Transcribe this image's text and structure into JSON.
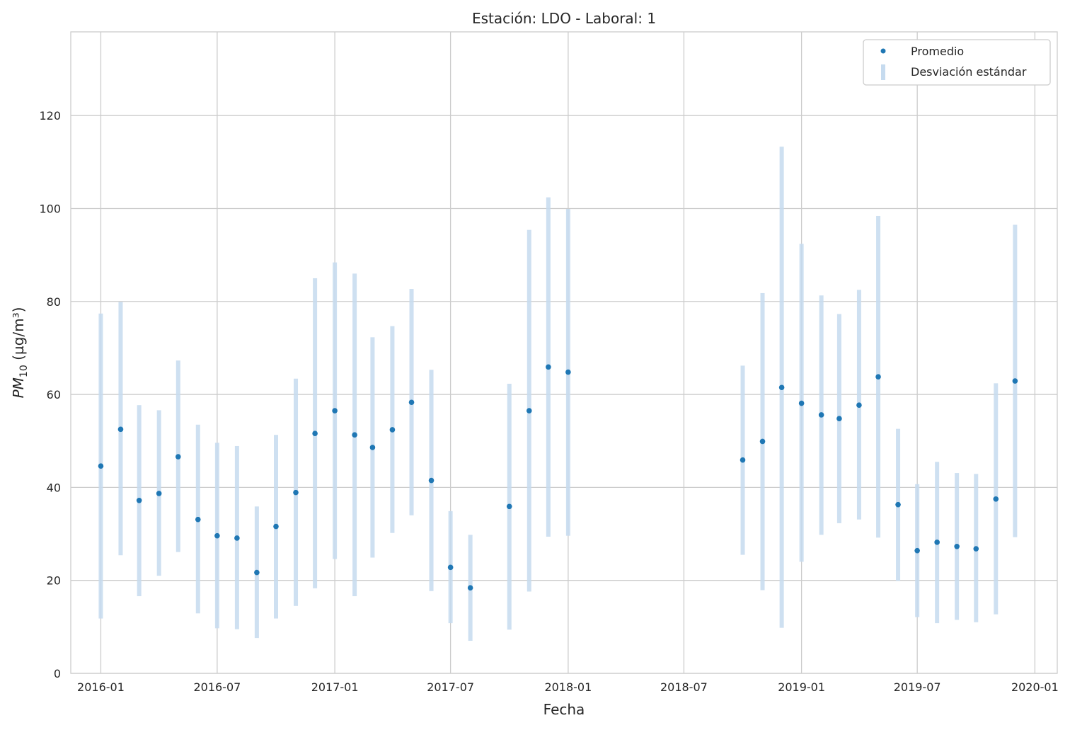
{
  "chart_data": {
    "type": "scatter",
    "title": "Estación: LDO - Laboral: 1",
    "xlabel": "Fecha",
    "ylabel": {
      "base": "PM",
      "sub": "10",
      "unit": " (µg/m³)"
    },
    "xlim": [
      "2015-11-15",
      "2020-02-05"
    ],
    "ylim": [
      0,
      138
    ],
    "yticks": [
      0,
      20,
      40,
      60,
      80,
      100,
      120
    ],
    "xticks": [
      "2016-01",
      "2016-07",
      "2017-01",
      "2017-07",
      "2018-01",
      "2018-07",
      "2019-01",
      "2019-07",
      "2020-01"
    ],
    "grid": true,
    "legend": {
      "position": "top-right",
      "entries": [
        "Promedio",
        "Desviación estándar"
      ]
    },
    "colors": {
      "mean": "#1f77b4",
      "std": "#c6dbef"
    },
    "series": [
      {
        "name": "Promedio",
        "kind": "points",
        "values": [
          {
            "x": "2016-01-01",
            "y": 44.6
          },
          {
            "x": "2016-02-01",
            "y": 52.5
          },
          {
            "x": "2016-03-01",
            "y": 37.2
          },
          {
            "x": "2016-04-01",
            "y": 38.7
          },
          {
            "x": "2016-05-01",
            "y": 46.6
          },
          {
            "x": "2016-06-01",
            "y": 33.1
          },
          {
            "x": "2016-07-01",
            "y": 29.6
          },
          {
            "x": "2016-08-01",
            "y": 29.1
          },
          {
            "x": "2016-09-01",
            "y": 21.7
          },
          {
            "x": "2016-10-01",
            "y": 31.6
          },
          {
            "x": "2016-11-01",
            "y": 38.9
          },
          {
            "x": "2016-12-01",
            "y": 51.6
          },
          {
            "x": "2017-01-01",
            "y": 56.5
          },
          {
            "x": "2017-02-01",
            "y": 51.3
          },
          {
            "x": "2017-03-01",
            "y": 48.6
          },
          {
            "x": "2017-04-01",
            "y": 52.4
          },
          {
            "x": "2017-05-01",
            "y": 58.3
          },
          {
            "x": "2017-06-01",
            "y": 41.5
          },
          {
            "x": "2017-07-01",
            "y": 22.8
          },
          {
            "x": "2017-08-01",
            "y": 18.4
          },
          {
            "x": "2017-10-01",
            "y": 35.9
          },
          {
            "x": "2017-11-01",
            "y": 56.5
          },
          {
            "x": "2017-12-01",
            "y": 65.9
          },
          {
            "x": "2018-01-01",
            "y": 64.8
          },
          {
            "x": "2018-10-01",
            "y": 45.9
          },
          {
            "x": "2018-11-01",
            "y": 49.9
          },
          {
            "x": "2018-12-01",
            "y": 61.5
          },
          {
            "x": "2019-01-01",
            "y": 58.1
          },
          {
            "x": "2019-02-01",
            "y": 55.6
          },
          {
            "x": "2019-03-01",
            "y": 54.8
          },
          {
            "x": "2019-04-01",
            "y": 57.7
          },
          {
            "x": "2019-05-01",
            "y": 63.8
          },
          {
            "x": "2019-06-01",
            "y": 36.3
          },
          {
            "x": "2019-07-01",
            "y": 26.4
          },
          {
            "x": "2019-08-01",
            "y": 28.2
          },
          {
            "x": "2019-09-01",
            "y": 27.3
          },
          {
            "x": "2019-10-01",
            "y": 26.8
          },
          {
            "x": "2019-11-01",
            "y": 37.5
          },
          {
            "x": "2019-12-01",
            "y": 62.9
          }
        ]
      },
      {
        "name": "Desviación estándar",
        "kind": "ranges",
        "values": [
          {
            "x": "2016-01-01",
            "low": 11.8,
            "high": 77.4
          },
          {
            "x": "2016-02-01",
            "low": 25.4,
            "high": 79.9
          },
          {
            "x": "2016-03-01",
            "low": 16.6,
            "high": 57.7
          },
          {
            "x": "2016-04-01",
            "low": 21.0,
            "high": 56.6
          },
          {
            "x": "2016-05-01",
            "low": 26.1,
            "high": 67.3
          },
          {
            "x": "2016-06-01",
            "low": 12.9,
            "high": 53.5
          },
          {
            "x": "2016-07-01",
            "low": 9.7,
            "high": 49.6
          },
          {
            "x": "2016-08-01",
            "low": 9.5,
            "high": 48.9
          },
          {
            "x": "2016-09-01",
            "low": 7.6,
            "high": 35.9
          },
          {
            "x": "2016-10-01",
            "low": 11.8,
            "high": 51.3
          },
          {
            "x": "2016-11-01",
            "low": 14.5,
            "high": 63.4
          },
          {
            "x": "2016-12-01",
            "low": 18.3,
            "high": 85.0
          },
          {
            "x": "2017-01-01",
            "low": 24.6,
            "high": 88.4
          },
          {
            "x": "2017-02-01",
            "low": 16.6,
            "high": 86.0
          },
          {
            "x": "2017-03-01",
            "low": 24.9,
            "high": 72.3
          },
          {
            "x": "2017-04-01",
            "low": 30.2,
            "high": 74.7
          },
          {
            "x": "2017-05-01",
            "low": 34.0,
            "high": 82.7
          },
          {
            "x": "2017-06-01",
            "low": 17.7,
            "high": 65.3
          },
          {
            "x": "2017-07-01",
            "low": 10.8,
            "high": 34.9
          },
          {
            "x": "2017-08-01",
            "low": 7.0,
            "high": 29.8
          },
          {
            "x": "2017-10-01",
            "low": 9.4,
            "high": 62.3
          },
          {
            "x": "2017-11-01",
            "low": 17.6,
            "high": 95.4
          },
          {
            "x": "2017-12-01",
            "low": 29.4,
            "high": 102.4
          },
          {
            "x": "2018-01-01",
            "low": 29.6,
            "high": 99.9
          },
          {
            "x": "2018-10-01",
            "low": 25.5,
            "high": 66.2
          },
          {
            "x": "2018-11-01",
            "low": 17.9,
            "high": 81.8
          },
          {
            "x": "2018-12-01",
            "low": 9.8,
            "high": 113.3
          },
          {
            "x": "2019-01-01",
            "low": 24.0,
            "high": 92.4
          },
          {
            "x": "2019-02-01",
            "low": 29.8,
            "high": 81.3
          },
          {
            "x": "2019-03-01",
            "low": 32.3,
            "high": 77.3
          },
          {
            "x": "2019-04-01",
            "low": 33.1,
            "high": 82.5
          },
          {
            "x": "2019-05-01",
            "low": 29.2,
            "high": 98.4
          },
          {
            "x": "2019-06-01",
            "low": 19.9,
            "high": 52.6
          },
          {
            "x": "2019-07-01",
            "low": 12.1,
            "high": 40.7
          },
          {
            "x": "2019-08-01",
            "low": 10.8,
            "high": 45.5
          },
          {
            "x": "2019-09-01",
            "low": 11.5,
            "high": 43.1
          },
          {
            "x": "2019-10-01",
            "low": 11.0,
            "high": 42.9
          },
          {
            "x": "2019-11-01",
            "low": 12.7,
            "high": 62.4
          },
          {
            "x": "2019-12-01",
            "low": 29.3,
            "high": 96.5
          }
        ]
      }
    ]
  }
}
